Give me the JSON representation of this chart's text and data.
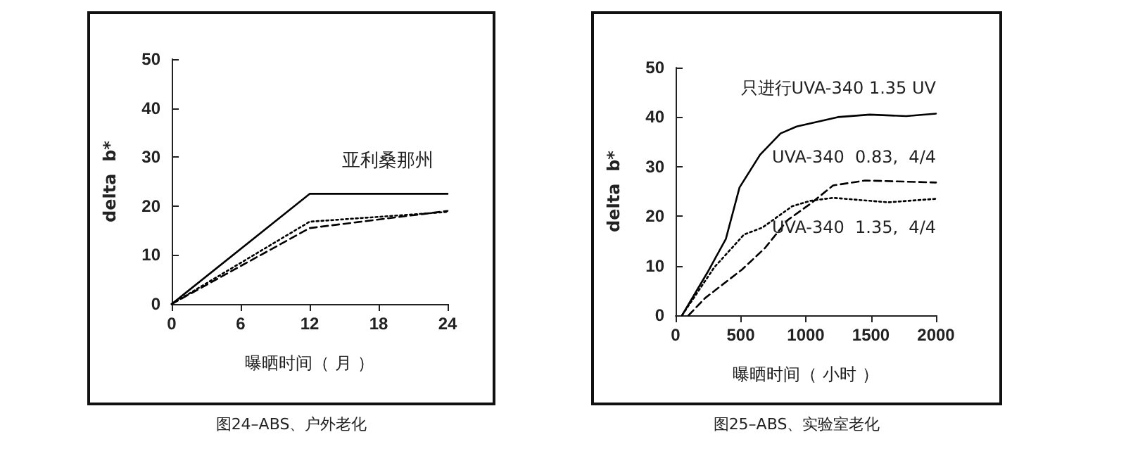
{
  "chart_data": [
    {
      "type": "line",
      "xlabel": "曝晒时间（ 月 ）",
      "ylabel": "delta  b*",
      "x": [
        0,
        12,
        24
      ],
      "series": [
        {
          "color": "#000000",
          "line_style": "solid",
          "values": [
            0,
            22.5,
            22.5
          ]
        },
        {
          "color": "#000000",
          "line_style": "dotted",
          "values": [
            0,
            16.8,
            18.8
          ]
        },
        {
          "color": "#000000",
          "line_style": "dashed",
          "values": [
            0,
            15.5,
            19
          ]
        }
      ],
      "xlim": [
        0,
        24
      ],
      "xticks": [
        0,
        6,
        12,
        18,
        24
      ],
      "ylim": [
        0,
        50
      ],
      "yticks": [
        0,
        10,
        20,
        30,
        40,
        50
      ],
      "grid": false,
      "legend": false,
      "marker": "none",
      "annotations": [
        "亚利桑那州",
        "图24–ABS、户外老化"
      ]
    },
    {
      "type": "line",
      "xlabel": "曝晒时间（ 小时 ）",
      "ylabel": "delta  b*",
      "series": [
        {
          "name": "只进行UVA-340 1.35 UV",
          "color": "#000000",
          "line_style": "solid",
          "x": [
            50,
            246,
            386,
            491,
            649,
            806,
            930,
            1246,
            1491,
            1772,
            2000
          ],
          "values": [
            0,
            8.7,
            15.4,
            25.8,
            32.4,
            36.7,
            38.1,
            40,
            40.5,
            40.2,
            40.7
          ]
        },
        {
          "name": "UVA-340  0.83,  4/4",
          "color": "#000000",
          "line_style": "dashed",
          "x": [
            100,
            228,
            509,
            684,
            860,
            1035,
            1210,
            1456,
            2000
          ],
          "values": [
            0,
            3.5,
            9.2,
            13.5,
            19.2,
            22.5,
            26.2,
            27.2,
            26.8
          ]
        },
        {
          "name": "UVA-340  1.35,  4/4",
          "color": "#000000",
          "line_style": "dotted",
          "x": [
            50,
            298,
            526,
            667,
            895,
            1035,
            1210,
            1632,
            2000
          ],
          "values": [
            0,
            9.7,
            16.3,
            17.7,
            22,
            23.1,
            23.7,
            22.8,
            23.5
          ]
        }
      ],
      "xlim": [
        0,
        2000
      ],
      "xticks": [
        0,
        500,
        1000,
        1500,
        2000
      ],
      "ylim": [
        0,
        50
      ],
      "yticks": [
        0,
        10,
        20,
        30,
        40,
        50
      ],
      "grid": false,
      "legend": false,
      "marker": "none",
      "annotations": [
        "图25–ABS、实验室老化"
      ]
    }
  ]
}
